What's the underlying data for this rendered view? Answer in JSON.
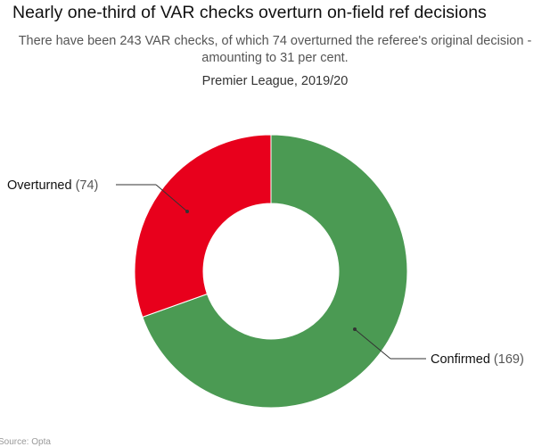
{
  "chart_data": {
    "type": "pie",
    "donut": true,
    "title": "Nearly one-third of VAR checks overturn on-field ref decisions",
    "subtitle_lines": [
      "There have been 243 VAR checks, of which 74 overturned the referee's original decision -",
      "amounting to 31 per cent."
    ],
    "caption": "Premier League, 2019/20",
    "slices": [
      {
        "name": "Confirmed",
        "value": 169,
        "value_label": "(169)",
        "color": "#4b9a53"
      },
      {
        "name": "Overturned",
        "value": 74,
        "value_label": "(74)",
        "color": "#e8001c"
      }
    ],
    "start_angle_deg": 0,
    "direction": "clockwise"
  },
  "footer": {
    "source": "Source: Opta"
  }
}
